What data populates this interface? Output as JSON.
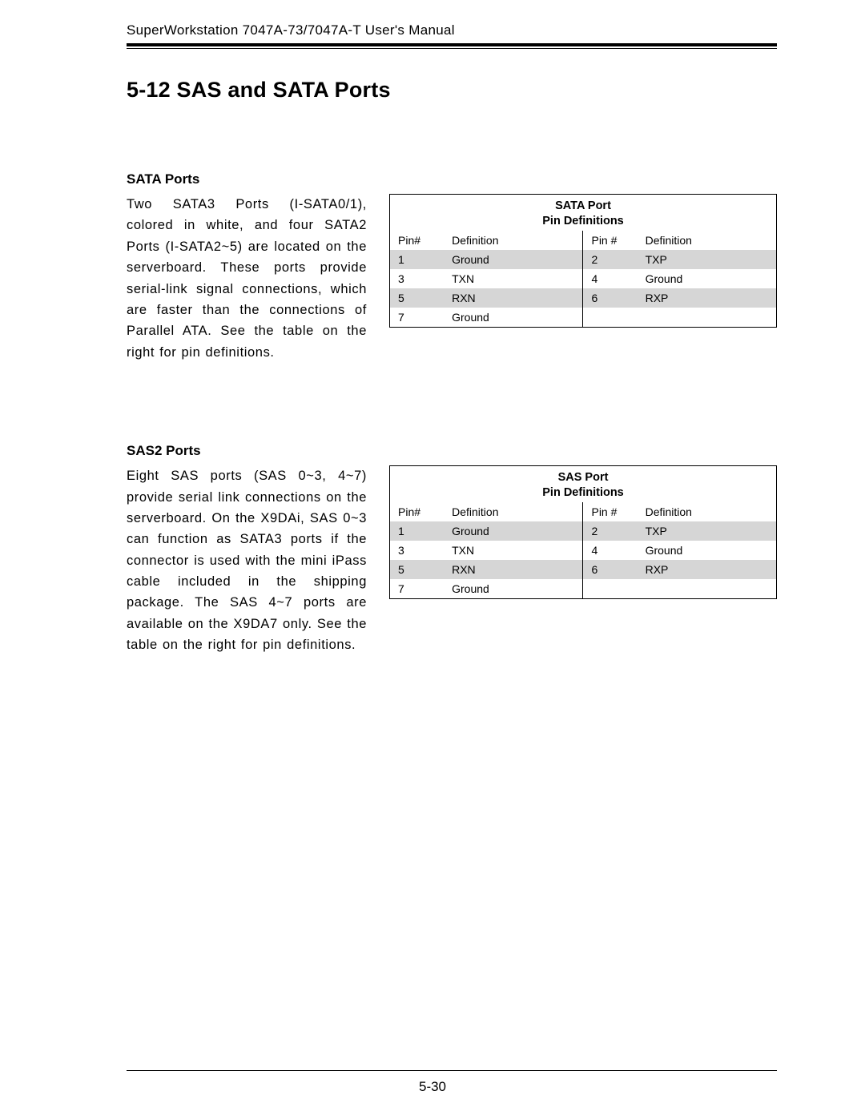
{
  "header": "SuperWorkstation 7047A-73/7047A-T User's Manual",
  "section_heading": "5-12  SAS and SATA Ports",
  "sata": {
    "heading": "SATA Ports",
    "body": "Two SATA3 Ports (I-SATA0/1), colored in white, and four SATA2 Ports (I-SATA2~5) are located on the serverboard. These ports provide serial-link signal connections, which are faster than the connections of Parallel ATA. See the table on the right for pin definitions.",
    "table_title_1": "SATA Port",
    "table_title_2": "Pin Definitions",
    "col_pin_l": "Pin#",
    "col_def_l": "Definition",
    "col_pin_r": "Pin #",
    "col_def_r": "Definition",
    "rows": [
      {
        "p1": "1",
        "d1": "Ground",
        "p2": "2",
        "d2": "TXP",
        "shaded": true
      },
      {
        "p1": "3",
        "d1": "TXN",
        "p2": "4",
        "d2": "Ground",
        "shaded": false
      },
      {
        "p1": "5",
        "d1": "RXN",
        "p2": "6",
        "d2": "RXP",
        "shaded": true
      },
      {
        "p1": "7",
        "d1": "Ground",
        "p2": "",
        "d2": "",
        "shaded": false
      }
    ]
  },
  "sas": {
    "heading": "SAS2 Ports",
    "body": "Eight SAS ports (SAS 0~3, 4~7) provide serial link connections on the serverboard. On the X9DAi, SAS 0~3 can function as SATA3 ports if the connector is used with the mini iPass cable included in the shipping package. The SAS 4~7 ports are available on the X9DA7 only. See the table on the right for pin definitions.",
    "table_title_1": "SAS Port",
    "table_title_2": "Pin Definitions",
    "col_pin_l": "Pin#",
    "col_def_l": "Definition",
    "col_pin_r": "Pin #",
    "col_def_r": "Definition",
    "rows": [
      {
        "p1": "1",
        "d1": "Ground",
        "p2": "2",
        "d2": "TXP",
        "shaded": true
      },
      {
        "p1": "3",
        "d1": "TXN",
        "p2": "4",
        "d2": "Ground",
        "shaded": false
      },
      {
        "p1": "5",
        "d1": "RXN",
        "p2": "6",
        "d2": "RXP",
        "shaded": true
      },
      {
        "p1": "7",
        "d1": "Ground",
        "p2": "",
        "d2": "",
        "shaded": false
      }
    ]
  },
  "page_number": "5-30"
}
